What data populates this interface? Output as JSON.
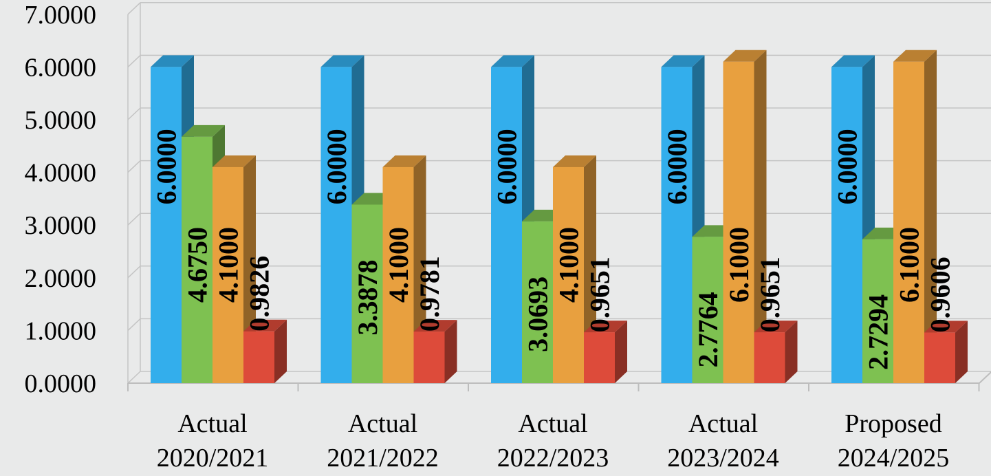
{
  "chart_data": {
    "type": "bar",
    "title": "",
    "xlabel": "",
    "ylabel": "",
    "ylim": [
      0,
      7
    ],
    "y_ticks": [
      "0.0000",
      "1.0000",
      "2.0000",
      "3.0000",
      "4.0000",
      "5.0000",
      "6.0000",
      "7.0000"
    ],
    "categories": [
      [
        "Actual",
        "2020/2021"
      ],
      [
        "Actual",
        "2021/2022"
      ],
      [
        "Actual",
        "2022/2023"
      ],
      [
        "Actual",
        "2023/2024"
      ],
      [
        "Proposed",
        "2024/2025"
      ]
    ],
    "grid": true,
    "legend": "none",
    "style": "3d-clustered-column",
    "series": [
      {
        "color": "#33aeec",
        "values": [
          6.0,
          6.0,
          6.0,
          6.0,
          6.0
        ],
        "labels": [
          "6.0000",
          "6.0000",
          "6.0000",
          "6.0000",
          "6.0000"
        ]
      },
      {
        "color": "#7ec151",
        "values": [
          4.675,
          3.3878,
          3.0693,
          2.7764,
          2.7294
        ],
        "labels": [
          "4.6750",
          "3.3878",
          "3.0693",
          "2.7764",
          "2.7294"
        ]
      },
      {
        "color": "#e8a03f",
        "values": [
          4.1,
          4.1,
          4.1,
          6.1,
          6.1
        ],
        "labels": [
          "4.1000",
          "4.1000",
          "4.1000",
          "6.1000",
          "6.1000"
        ]
      },
      {
        "color": "#dd4b3a",
        "values": [
          0.9826,
          0.9781,
          0.9651,
          0.9651,
          0.9606
        ],
        "labels": [
          "0.9826",
          "0.9781",
          "0.9651",
          "0.9651",
          "0.9606"
        ]
      }
    ]
  }
}
